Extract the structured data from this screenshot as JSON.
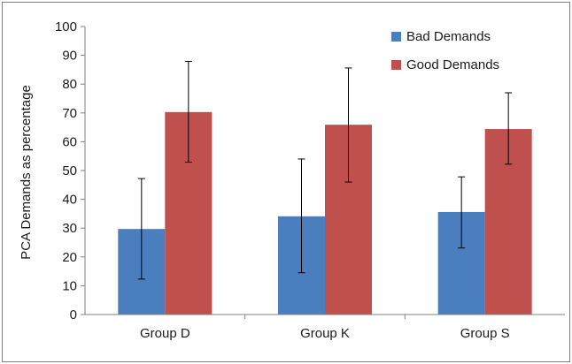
{
  "chart_data": {
    "type": "bar",
    "ylabel": "PCA Demands as percentage",
    "xlabel": "",
    "ylim": [
      0,
      100
    ],
    "yticks": [
      0,
      10,
      20,
      30,
      40,
      50,
      60,
      70,
      80,
      90,
      100
    ],
    "categories": [
      "Group D",
      "Group K",
      "Group S"
    ],
    "series": [
      {
        "name": "Bad Demands",
        "color": "#4a7ebf",
        "values": [
          29.7,
          34.1,
          35.6
        ],
        "error_low": [
          12.3,
          14.5,
          23.1
        ],
        "error_high": [
          47.2,
          54.0,
          47.8
        ]
      },
      {
        "name": "Good Demands",
        "color": "#c0504d",
        "values": [
          70.3,
          65.9,
          64.4
        ],
        "error_low": [
          52.9,
          46.0,
          52.2
        ],
        "error_high": [
          87.9,
          85.6,
          77.0
        ]
      }
    ],
    "legend_position": "top-right",
    "grid": false
  }
}
